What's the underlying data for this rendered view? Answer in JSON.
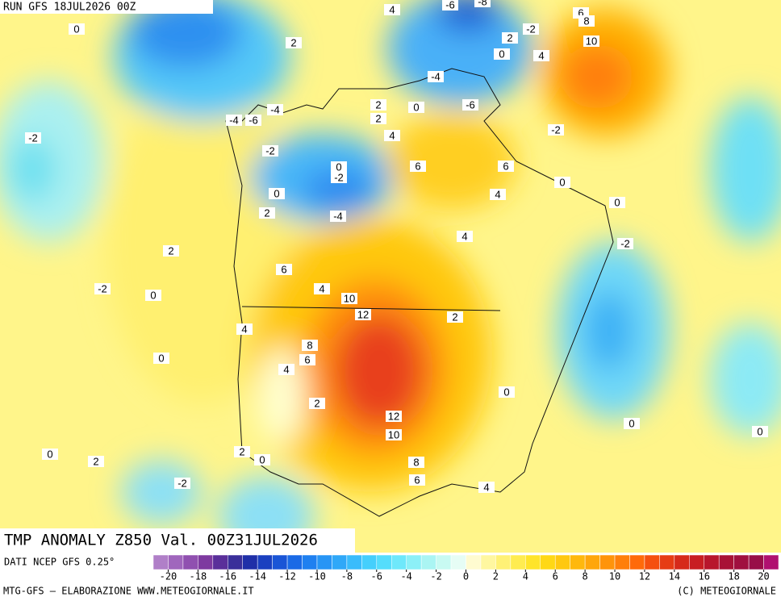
{
  "header": {
    "run": "RUN GFS 18JUL2026 00Z"
  },
  "title": "TMP ANOMALY Z850 Val. 00Z31JUL2026",
  "source": "DATI NCEP GFS 0.25°",
  "contour_labels": [
    4,
    -6,
    -8,
    0,
    2,
    -2,
    6,
    8,
    2,
    0,
    4,
    10,
    -4,
    2,
    0,
    -6,
    -4,
    -4,
    -6,
    2,
    -2,
    4,
    -2,
    -2,
    0,
    -2,
    6,
    6,
    0,
    0,
    4,
    0,
    2,
    -4,
    4,
    -2,
    2,
    6,
    -2,
    0,
    4,
    10,
    12,
    2,
    4,
    8,
    6,
    0,
    4,
    0,
    2,
    12,
    0,
    0,
    10,
    2,
    0,
    0,
    2,
    8,
    6,
    4,
    -2
  ],
  "colorbar": {
    "ticks": [
      -20,
      -18,
      -16,
      -14,
      -12,
      -10,
      -8,
      -6,
      -4,
      -2,
      0,
      2,
      4,
      6,
      8,
      10,
      12,
      14,
      16,
      18,
      20
    ],
    "colors": [
      "#b07fc8",
      "#a066bd",
      "#9050b0",
      "#7e3aa0",
      "#5a2f9a",
      "#3a2f9a",
      "#1f2fa8",
      "#1a40c0",
      "#1a55d6",
      "#1a6ae6",
      "#1f80f0",
      "#2795f5",
      "#2fa8f8",
      "#3abcfb",
      "#45cffc",
      "#55ddfc",
      "#6ee8fb",
      "#8cf0f7",
      "#aaf5f3",
      "#c8faf2",
      "#e6fdf5",
      "#fffbd0",
      "#fff7a0",
      "#fff176",
      "#ffec50",
      "#ffe42a",
      "#ffd815",
      "#ffc810",
      "#ffb80d",
      "#ffa60b",
      "#ff940a",
      "#ff7f0a",
      "#ff6a0a",
      "#f5500f",
      "#e63c14",
      "#d62a1a",
      "#c81e22",
      "#b8162c",
      "#a81236",
      "#a0103f",
      "#980e48",
      "#b01070"
    ]
  },
  "footer": {
    "left": "MTG-GFS — ELABORAZIONE WWW.METEOGIORNALE.IT",
    "right": "(C) METEOGIORNALE"
  }
}
